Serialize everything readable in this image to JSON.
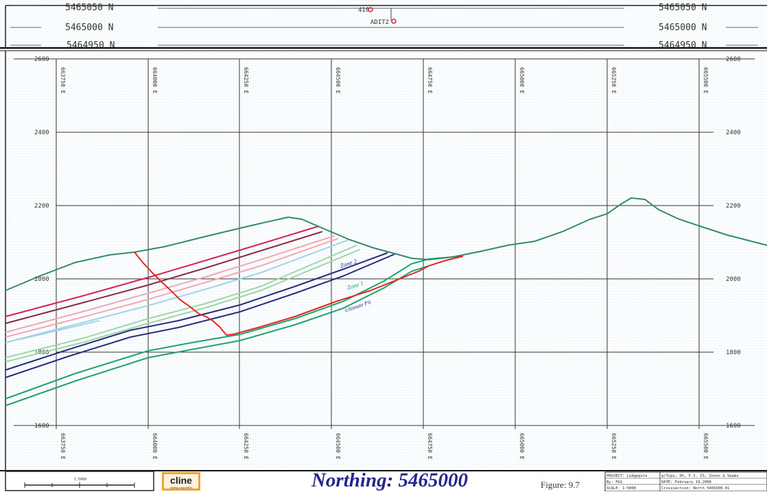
{
  "plan": {
    "northing_left": [
      "5465050 N",
      "5465000 N",
      "5464950 N"
    ],
    "northing_right": [
      "5465050 N",
      "5465000 N",
      "5464950 N"
    ],
    "marker_a": "410",
    "marker_b": "ADIT2"
  },
  "section": {
    "elevations": [
      "2600",
      "2400",
      "2200",
      "2000",
      "1800",
      "1600"
    ],
    "easting_top": [
      "663750 E",
      "664000 E",
      "664250 E",
      "664500 E",
      "664750 E",
      "665000 E",
      "665250 E",
      "665500 E"
    ],
    "easting_bottom": [
      "663750 E",
      "664000 E",
      "664250 E",
      "664500 E",
      "664750 E",
      "665000 E",
      "665250 E",
      "665500 E"
    ],
    "zone_labels": [
      "Zone 2",
      "Zone 1",
      "Ultimate Pit"
    ],
    "colors": {
      "topography": "#2e8b6a",
      "zone2": "#2b2a80",
      "zone1": "#1fa36a",
      "ultimate_pit": "#e0281e",
      "seam_magenta": "#d4205a",
      "seam_maroon": "#8a2a3a",
      "seam_pink": "#f2a8b0",
      "seam_lightblue": "#9fd4ea",
      "seam_green": "#9ed5a8",
      "title": "#26258c"
    }
  },
  "footer": {
    "scale_bar_label": "1:5000",
    "logo_text": "cline",
    "logo_subtext": "mining corporation",
    "title": "Northing: 5465000",
    "figure": "Figure: 9.7",
    "info_block": [
      "PROJECT: Lodgepole",
      "By: PGS",
      "SCALE: 1:5000",
      "w/Topo, Dh, F.S. IS, Zones & Seams",
      "DATE: February 19,2008",
      "Crosssection: North 5465000.01"
    ]
  }
}
